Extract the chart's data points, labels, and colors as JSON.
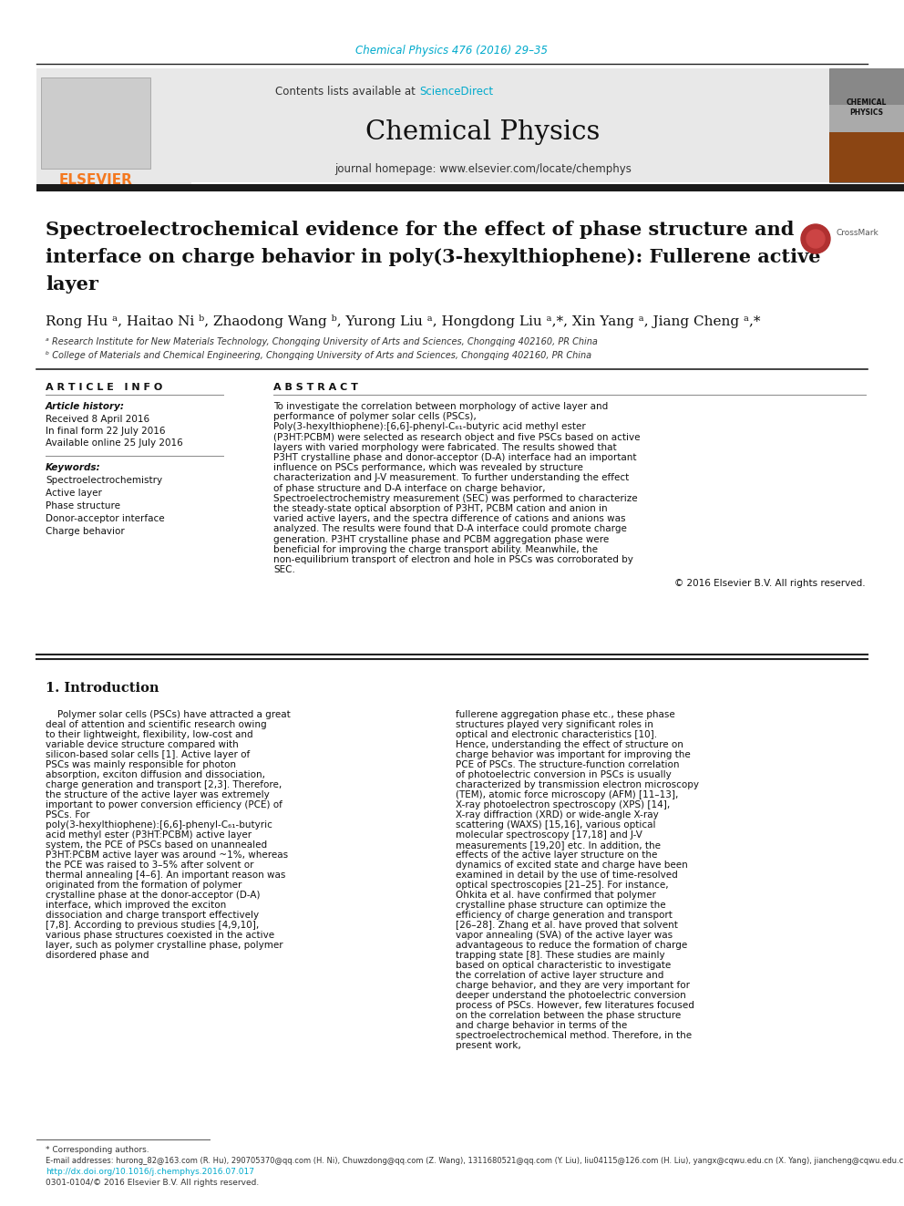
{
  "page_background": "#ffffff",
  "top_citation": "Chemical Physics 476 (2016) 29–35",
  "top_citation_color": "#00aacc",
  "header_bg": "#e8e8e8",
  "header_text1": "Contents lists available at ",
  "header_sciencedirect": "ScienceDirect",
  "header_sciencedirect_color": "#00aacc",
  "journal_name": "Chemical Physics",
  "journal_homepage_label": "journal homepage: www.elsevier.com/locate/chemphys",
  "thick_bar_color": "#1a1a1a",
  "title_line1": "Spectroelectrochemical evidence for the effect of phase structure and",
  "title_line2": "interface on charge behavior in poly(3-hexylthiophene): Fullerene active",
  "title_line3": "layer",
  "authors_text": "Rong Hu ᵃ, Haitao Ni ᵇ, Zhaodong Wang ᵇ, Yurong Liu ᵃ, Hongdong Liu ᵃ,*, Xin Yang ᵃ, Jiang Cheng ᵃ,*",
  "affil_a": "ᵃ Research Institute for New Materials Technology, Chongqing University of Arts and Sciences, Chongqing 402160, PR China",
  "affil_b": "ᵇ College of Materials and Chemical Engineering, Chongqing University of Arts and Sciences, Chongqing 402160, PR China",
  "section_left": "A R T I C L E   I N F O",
  "article_history_label": "Article history:",
  "received": "Received 8 April 2016",
  "final_form": "In final form 22 July 2016",
  "available": "Available online 25 July 2016",
  "keywords_label": "Keywords:",
  "keywords": [
    "Spectroelectrochemistry",
    "Active layer",
    "Phase structure",
    "Donor-acceptor interface",
    "Charge behavior"
  ],
  "section_right": "A B S T R A C T",
  "abstract_text": "To investigate the correlation between morphology of active layer and performance of polymer solar cells (PSCs), Poly(3-hexylthiophene):[6,6]-phenyl-C₆₁-butyric acid methyl ester (P3HT:PCBM) were selected as research object and five PSCs based on active layers with varied morphology were fabricated. The results showed that P3HT crystalline phase and donor-acceptor (D-A) interface had an important influence on PSCs performance, which was revealed by structure characterization and J-V measurement. To further understanding the effect of phase structure and D-A interface on charge behavior, Spectroelectrochemistry measurement (SEC) was performed to characterize the steady-state optical absorption of P3HT, PCBM cation and anion in varied active layers, and the spectra difference of cations and anions was analyzed. The results were found that D-A interface could promote charge generation. P3HT crystalline phase and PCBM aggregation phase were beneficial for improving the charge transport ability. Meanwhile, the non-equilibrium transport of electron and hole in PSCs was corroborated by SEC.",
  "copyright": "© 2016 Elsevier B.V. All rights reserved.",
  "intro_heading": "1. Introduction",
  "intro_col1": "Polymer solar cells (PSCs) have attracted a great deal of attention and scientific research owing to their lightweight, flexibility, low-cost and variable device structure compared with silicon-based solar cells [1]. Active layer of PSCs was mainly responsible for photon absorption, exciton diffusion and dissociation, charge generation and transport [2,3]. Therefore, the structure of the active layer was extremely important to power conversion efficiency (PCE) of PSCs. For poly(3-hexylthiophene):[6,6]-phenyl-C₆₁-butyric acid methyl ester (P3HT:PCBM) active layer system, the PCE of PSCs based on unannealed P3HT:PCBM active layer was around ~1%, whereas the PCE was raised to 3–5% after solvent or thermal annealing [4–6]. An important reason was originated from the formation of polymer crystalline phase at the donor-acceptor (D-A) interface, which improved the exciton dissociation and charge transport effectively [7,8]. According to previous studies [4,9,10], various phase structures coexisted in the active layer, such as polymer crystalline phase, polymer disordered phase and",
  "intro_col2": "fullerene aggregation phase etc., these phase structures played very significant roles in optical and electronic characteristics [10]. Hence, understanding the effect of structure on charge behavior was important for improving the PCE of PSCs.\n    The structure-function correlation of photoelectric conversion in PSCs is usually characterized by transmission electron microscopy (TEM), atomic force microscopy (AFM) [11–13], X-ray photoelectron spectroscopy (XPS) [14], X-ray diffraction (XRD) or wide-angle X-ray scattering (WAXS) [15,16], various optical molecular spectroscopy [17,18] and J-V measurements [19,20] etc. In addition, the effects of the active layer structure on the dynamics of excited state and charge have been examined in detail by the use of time-resolved optical spectroscopies [21–25]. For instance, Ohkita et al. have confirmed that polymer crystalline phase structure can optimize the efficiency of charge generation and transport [26–28]. Zhang et al. have proved that solvent vapor annealing (SVA) of the active layer was advantageous to reduce the formation of charge trapping state [8]. These studies are mainly based on optical characteristic to investigate the correlation of active layer structure and charge behavior, and they are very important for deeper understand the photoelectric conversion process of PSCs. However, few literatures focused on the correlation between the phase structure and charge behavior in terms of the spectroelectrochemical method. Therefore, in the present work,",
  "footer_note": "* Corresponding authors.",
  "footer_emails": "E-mail addresses: hurong_82@163.com (R. Hu), 290705370@qq.com (H. Ni), Chuwzdong@qq.com (Z. Wang), 1311680521@qq.com (Y. Liu), liu04115@126.com (H. Liu), yangx@cqwu.edu.cn (X. Yang), jiancheng@cqwu.edu.cn (J. Cheng).",
  "footer_doi": "http://dx.doi.org/10.1016/j.chemphys.2016.07.017",
  "footer_issn": "0301-0104/© 2016 Elsevier B.V. All rights reserved.",
  "elsevier_color": "#f47920",
  "ref_color": "#00aacc"
}
